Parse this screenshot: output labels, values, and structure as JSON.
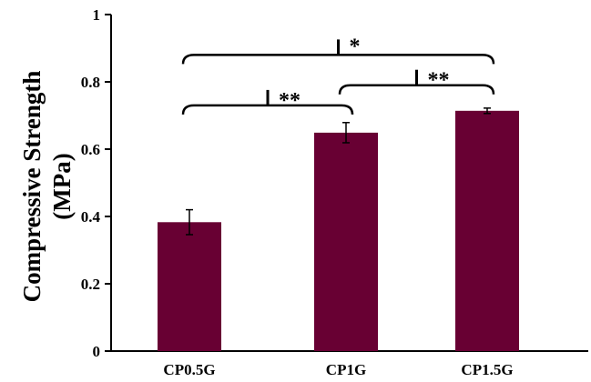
{
  "chart_data": {
    "type": "bar",
    "categories": [
      "CP0.5G",
      "CP1G",
      "CP1.5G"
    ],
    "values": [
      0.383,
      0.649,
      0.714
    ],
    "errors": [
      0.037,
      0.03,
      0.008
    ],
    "ylabel_line1": "Compressive Strength",
    "ylabel_line2": "(MPa)",
    "ylim": [
      0,
      1
    ],
    "yticks": [
      0,
      0.2,
      0.4,
      0.6,
      0.8,
      1
    ],
    "ytick_labels": [
      "0",
      "0.2",
      "0.4",
      "0.6",
      "0.8",
      "1"
    ],
    "bar_color": "#680033",
    "grid": false,
    "significance": [
      {
        "from": 0,
        "to": 1,
        "label": "**",
        "level": 0.73
      },
      {
        "from": 1,
        "to": 2,
        "label": "**",
        "level": 0.79
      },
      {
        "from": 0,
        "to": 2,
        "label": "*",
        "level": 0.88
      }
    ]
  }
}
